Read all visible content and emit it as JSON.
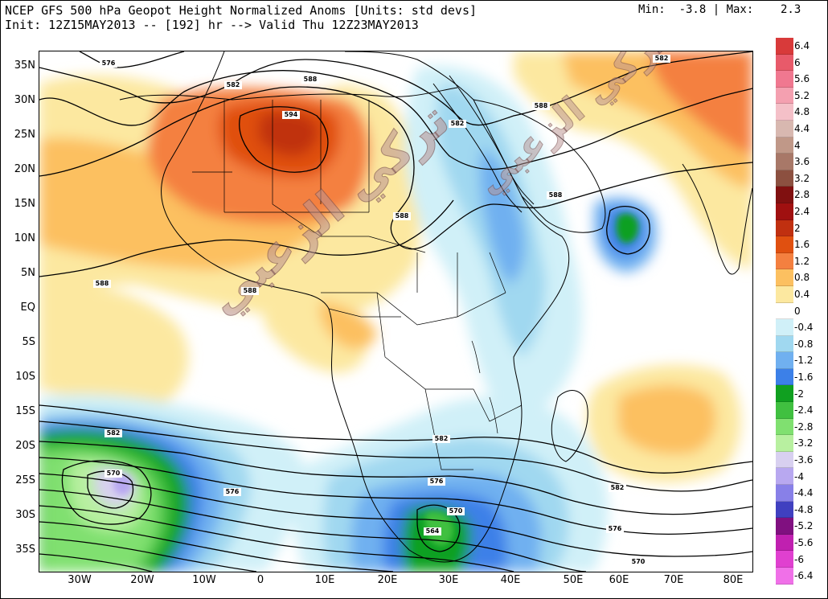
{
  "header": {
    "title_line1": "NCEP GFS 500 hPa Geopot Height Normalized Anoms [Units: std devs]",
    "title_line2": "Init: 12Z15MAY2013 -- [192] hr --> Valid Thu 12Z23MAY2013",
    "minmax": "Min:  -3.8 | Max:    2.3"
  },
  "lat_labels": [
    "35N",
    "30N",
    "25N",
    "20N",
    "15N",
    "10N",
    "5N",
    "EQ",
    "5S",
    "10S",
    "15S",
    "20S",
    "25S",
    "30S",
    "35S"
  ],
  "lon_labels": [
    "30W",
    "20W",
    "10W",
    "0",
    "10E",
    "20E",
    "30E",
    "40E",
    "50E",
    "60E",
    "70E",
    "80E"
  ],
  "colorbar": {
    "labels": [
      "6.4",
      "6",
      "5.6",
      "5.2",
      "4.8",
      "4.4",
      "4",
      "3.6",
      "3.2",
      "2.8",
      "2.4",
      "2",
      "1.6",
      "1.2",
      "0.8",
      "0.4",
      "0",
      "-0.4",
      "-0.8",
      "-1.2",
      "-1.6",
      "-2",
      "-2.4",
      "-2.8",
      "-3.2",
      "-3.6",
      "-4",
      "-4.4",
      "-4.8",
      "-5.2",
      "-5.6",
      "-6",
      "-6.4"
    ],
    "colors": [
      "#d83a3a",
      "#e85a6a",
      "#f07890",
      "#f4a0b0",
      "#f4c0c8",
      "#d8b8b0",
      "#c09888",
      "#a87868",
      "#8c5040",
      "#801010",
      "#a01010",
      "#c03010",
      "#e05010",
      "#f48040",
      "#fcc060",
      "#fce8a0",
      "#ffffff",
      "#d0f0f8",
      "#a0d8f0",
      "#70b0f0",
      "#3c80e8",
      "#10a020",
      "#40c040",
      "#80e070",
      "#b8f0a0",
      "#d8d0f0",
      "#b8a8f0",
      "#8880e8",
      "#4040c0",
      "#801080",
      "#c020b0",
      "#e040d0",
      "#f070e8"
    ]
  },
  "contour_labels": [
    "576",
    "582",
    "588",
    "594",
    "588",
    "582",
    "588",
    "588",
    "588",
    "582",
    "576",
    "570",
    "582",
    "576",
    "570",
    "564",
    "582",
    "576",
    "570",
    "588",
    "582"
  ],
  "watermark": "تركي الزعبي"
}
